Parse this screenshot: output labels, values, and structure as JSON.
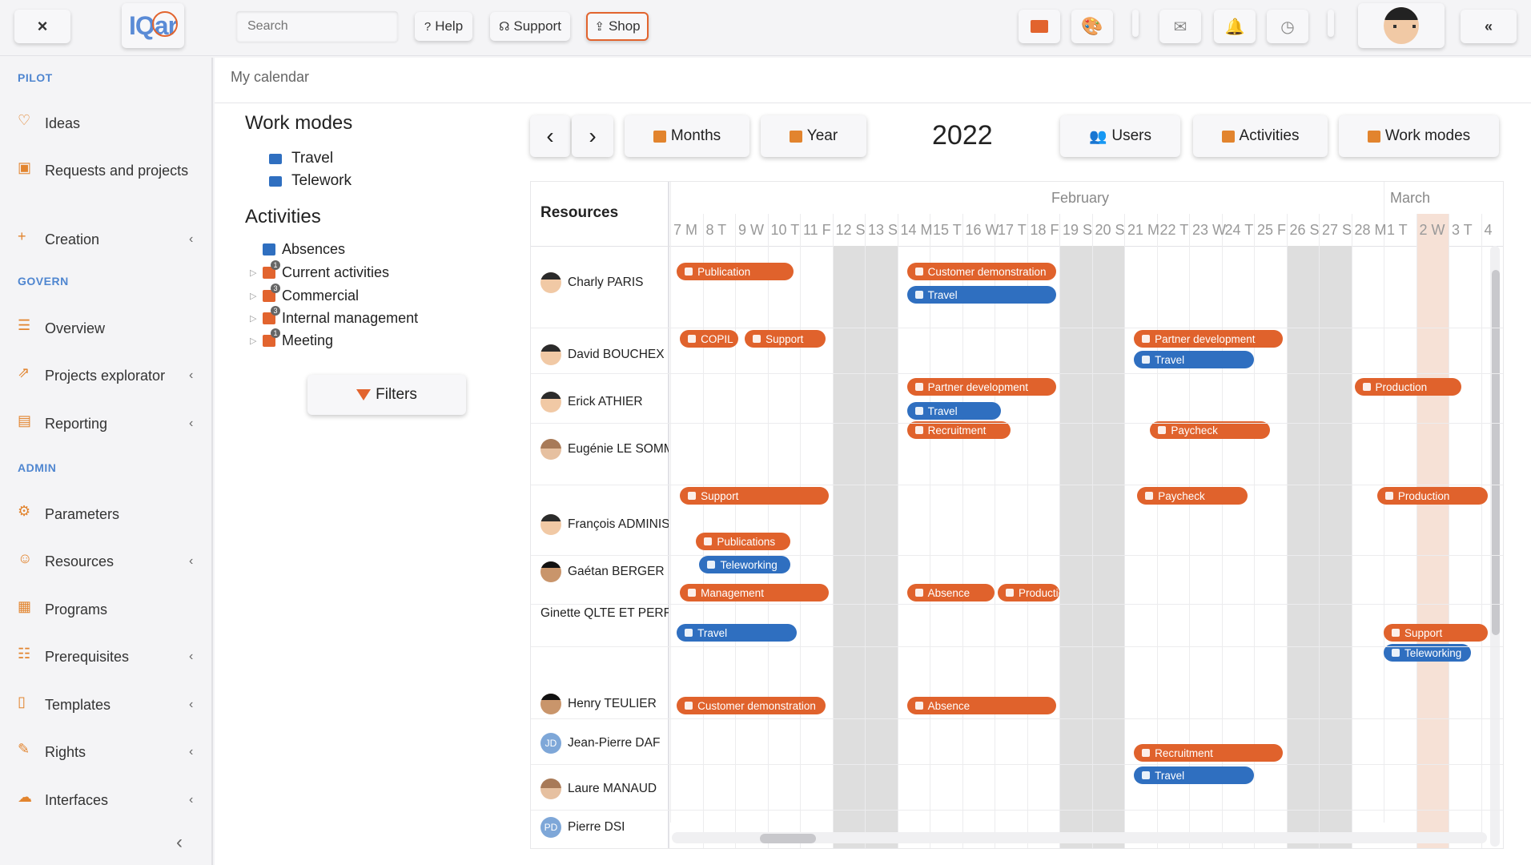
{
  "topbar": {
    "close_label": "×",
    "logo_text": "IQar",
    "search_placeholder": "Search",
    "help_label": "Help",
    "support_label": "Support",
    "shop_label": "Shop",
    "collapse_label": "«"
  },
  "sidebar": {
    "sections": [
      {
        "title": "PILOT"
      },
      {
        "title": "GOVERN"
      },
      {
        "title": "ADMIN"
      }
    ],
    "items": [
      {
        "label": "Ideas",
        "icon": "lightbulb-icon",
        "chevron": ""
      },
      {
        "label": "Requests and projects",
        "icon": "briefcase-icon",
        "chevron": ""
      },
      {
        "label": "Creation",
        "icon": "plus-icon",
        "chevron": "‹"
      },
      {
        "label": "Overview",
        "icon": "list-icon",
        "chevron": ""
      },
      {
        "label": "Projects explorator",
        "icon": "share-icon",
        "chevron": "‹"
      },
      {
        "label": "Reporting",
        "icon": "clipboard-icon",
        "chevron": "‹"
      },
      {
        "label": "Parameters",
        "icon": "gear-icon",
        "chevron": ""
      },
      {
        "label": "Resources",
        "icon": "user-icon",
        "chevron": "‹"
      },
      {
        "label": "Programs",
        "icon": "table-icon",
        "chevron": ""
      },
      {
        "label": "Prerequisites",
        "icon": "checklist-icon",
        "chevron": "‹"
      },
      {
        "label": "Templates",
        "icon": "document-icon",
        "chevron": "‹"
      },
      {
        "label": "Rights",
        "icon": "edit-icon",
        "chevron": "‹"
      },
      {
        "label": "Interfaces",
        "icon": "cloud-icon",
        "chevron": "‹"
      }
    ],
    "collapse_label": "‹"
  },
  "main": {
    "breadcrumb": "My calendar",
    "work_modes_title": "Work modes",
    "work_modes": [
      {
        "label": "Travel"
      },
      {
        "label": "Telework"
      }
    ],
    "activities_title": "Activities",
    "activities": [
      {
        "label": "Absences",
        "badge": ""
      },
      {
        "label": "Current activities",
        "badge": "1"
      },
      {
        "label": "Commercial",
        "badge": "3"
      },
      {
        "label": "Internal management",
        "badge": "3"
      },
      {
        "label": "Meeting",
        "badge": "1"
      }
    ],
    "filters_label": "Filters",
    "prev_label": "‹",
    "next_label": "›",
    "months_label": "Months",
    "year_btn_label": "Year",
    "year": "2022",
    "users_label": "Users",
    "activities_btn_label": "Activities",
    "workmodes_btn_label": "Work modes"
  },
  "calendar": {
    "resources_header": "Resources",
    "months": [
      {
        "label": "February"
      },
      {
        "label": "March"
      }
    ],
    "days": [
      "7 M",
      "8 T",
      "9 W",
      "10 T",
      "11 F",
      "12 S",
      "13 S",
      "14 M",
      "15 T",
      "16 W",
      "17 T",
      "18 F",
      "19 S",
      "20 S",
      "21 M",
      "22 T",
      "23 W",
      "24 T",
      "25 F",
      "26 S",
      "27 S",
      "28 M",
      "1 T",
      "2 W",
      "3 T",
      "4"
    ],
    "today_index": 23,
    "resources": [
      {
        "name": "Charly PARIS",
        "avatar": "face-a",
        "initials": ""
      },
      {
        "name": "David BOUCHEX",
        "avatar": "face-a",
        "initials": ""
      },
      {
        "name": "Erick ATHIER",
        "avatar": "face-a",
        "initials": ""
      },
      {
        "name": "Eugénie LE SOMMER",
        "avatar": "face-c",
        "initials": ""
      },
      {
        "name": "François ADMINISTRATEUR",
        "avatar": "face-a",
        "initials": ""
      },
      {
        "name": "Gaétan BERGER",
        "avatar": "face-b",
        "initials": ""
      },
      {
        "name": "Ginette QLTE ET PERF",
        "avatar": "none",
        "initials": ""
      },
      {
        "name": "Henry TEULIER",
        "avatar": "face-b",
        "initials": ""
      },
      {
        "name": "Jean-Pierre DAF",
        "avatar": "initials",
        "initials": "JD"
      },
      {
        "name": "Laure MANAUD",
        "avatar": "face-c",
        "initials": ""
      },
      {
        "name": "Pierre DSI",
        "avatar": "initials",
        "initials": "PD"
      }
    ],
    "events": [
      {
        "label": "Publication",
        "kind": "act",
        "row": 0,
        "start": 0.2,
        "end": 3.8,
        "slot": 0
      },
      {
        "label": "Customer demonstration",
        "kind": "act",
        "row": 0,
        "start": 7.3,
        "end": 11.9,
        "slot": 0
      },
      {
        "label": "Travel",
        "kind": "wm",
        "row": 0,
        "start": 7.3,
        "end": 11.9,
        "slot": 1
      },
      {
        "label": "COPIL",
        "kind": "act",
        "row": 1,
        "start": 0.3,
        "end": 2.1,
        "slot": 0
      },
      {
        "label": "Support",
        "kind": "act",
        "row": 1,
        "start": 2.3,
        "end": 4.8,
        "slot": 0
      },
      {
        "label": "Partner development",
        "kind": "act",
        "row": 1,
        "start": 14.3,
        "end": 18.9,
        "slot": 0
      },
      {
        "label": "Travel",
        "kind": "wm",
        "row": 1,
        "start": 14.3,
        "end": 18.0,
        "slot": 1
      },
      {
        "label": "Partner development",
        "kind": "act",
        "row": 2,
        "start": 7.3,
        "end": 11.9,
        "slot": 0
      },
      {
        "label": "Travel",
        "kind": "wm",
        "row": 2,
        "start": 7.3,
        "end": 10.2,
        "slot": 1
      },
      {
        "label": "Production",
        "kind": "act",
        "row": 2,
        "start": 21.1,
        "end": 24.4,
        "slot": 0
      },
      {
        "label": "Recruitment",
        "kind": "act",
        "row": 3,
        "start": 7.3,
        "end": 10.5,
        "slot": 0
      },
      {
        "label": "Paycheck",
        "kind": "act",
        "row": 3,
        "start": 14.8,
        "end": 18.5,
        "slot": 0
      },
      {
        "label": "Support",
        "kind": "act",
        "row": 4,
        "start": 0.3,
        "end": 4.9,
        "slot": 0
      },
      {
        "label": "Paycheck",
        "kind": "act",
        "row": 4,
        "start": 14.4,
        "end": 17.8,
        "slot": 0
      },
      {
        "label": "Production",
        "kind": "act",
        "row": 4,
        "start": 21.8,
        "end": 25.2,
        "slot": 0
      },
      {
        "label": "Publications",
        "kind": "act",
        "row": 5,
        "start": 0.8,
        "end": 3.7,
        "slot": 0
      },
      {
        "label": "Teleworking",
        "kind": "wm",
        "row": 5,
        "start": 0.9,
        "end": 3.7,
        "slot": 1
      },
      {
        "label": "Management",
        "kind": "act",
        "row": 6,
        "start": 0.3,
        "end": 4.9,
        "slot": 0
      },
      {
        "label": "Absence",
        "kind": "act",
        "row": 6,
        "start": 7.3,
        "end": 10.0,
        "slot": 0
      },
      {
        "label": "Production",
        "kind": "act",
        "row": 6,
        "start": 10.1,
        "end": 12.0,
        "slot": 0
      },
      {
        "label": "Travel",
        "kind": "wm",
        "row": 7,
        "start": 0.2,
        "end": 3.9,
        "slot": 0
      },
      {
        "label": "Support",
        "kind": "act",
        "row": 7,
        "start": 22.0,
        "end": 25.2,
        "slot": 0
      },
      {
        "label": "Teleworking",
        "kind": "wm",
        "row": 7,
        "start": 22.0,
        "end": 24.7,
        "slot": 1
      },
      {
        "label": "Customer demonstration",
        "kind": "act",
        "row": 8,
        "start": 0.2,
        "end": 4.8,
        "slot": 0
      },
      {
        "label": "Absence",
        "kind": "act",
        "row": 8,
        "start": 7.3,
        "end": 11.9,
        "slot": 0
      },
      {
        "label": "Recruitment",
        "kind": "act",
        "row": 9,
        "start": 14.3,
        "end": 18.9,
        "slot": 0
      },
      {
        "label": "Travel",
        "kind": "wm",
        "row": 9,
        "start": 14.3,
        "end": 18.0,
        "slot": 1
      }
    ]
  }
}
